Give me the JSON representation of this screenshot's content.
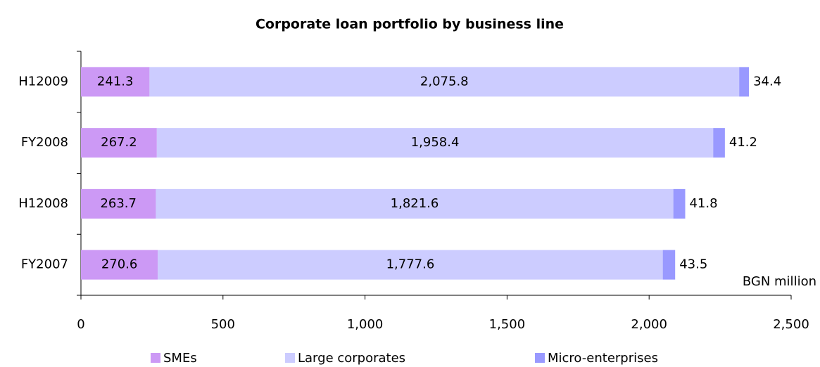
{
  "chart_data": {
    "type": "stacked-bar-horizontal",
    "title": "Corporate loan portfolio by business line",
    "annotation": "BGN million",
    "categories": [
      "H12009",
      "FY2008",
      "H12008",
      "FY2007"
    ],
    "series": [
      {
        "name": "SMEs",
        "color": "#cc99f5",
        "values": [
          241.3,
          267.2,
          263.7,
          270.6
        ]
      },
      {
        "name": "Large corporates",
        "color": "#ccccff",
        "values": [
          2075.8,
          1958.4,
          1821.6,
          1777.6
        ],
        "value_labels": [
          "2,075.8",
          "1,958.4",
          "1,821.6",
          "1,777.6"
        ]
      },
      {
        "name": "Micro-enterprises",
        "color": "#9999ff",
        "values": [
          34.4,
          41.2,
          41.8,
          43.5
        ]
      }
    ],
    "xlim": [
      0,
      2500
    ],
    "xticks": [
      0,
      500,
      {
        "value": 1000,
        "label": "1,000"
      },
      {
        "value": 1500,
        "label": "1,500"
      },
      {
        "value": 2000,
        "label": "2,000"
      },
      {
        "value": 2500,
        "label": "2,500"
      }
    ],
    "legend": "bottom"
  }
}
